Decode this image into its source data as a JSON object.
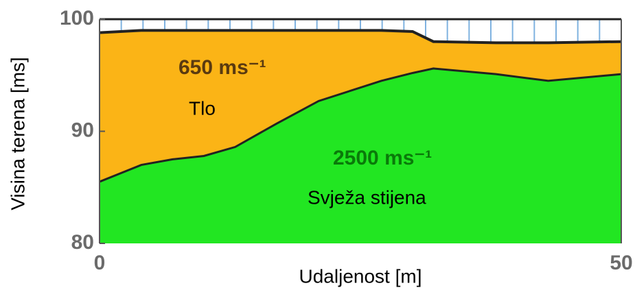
{
  "chart_data": {
    "type": "area",
    "x_label": "Udaljenost [m]",
    "y_label": "Visina terena [ms]",
    "x": [
      0,
      4,
      7,
      10,
      13,
      17,
      21,
      27,
      30,
      32,
      38,
      43,
      50
    ],
    "series": [
      {
        "color": "#fbb416",
        "values": [
          98.8,
          99,
          99,
          99,
          99,
          99,
          99,
          99,
          98.9,
          98,
          97.9,
          97.9,
          98
        ]
      },
      {
        "color": "#22e622",
        "values": [
          85.5,
          87,
          87.5,
          87.8,
          88.6,
          90.7,
          92.7,
          94.5,
          95.2,
          95.6,
          95.1,
          94.5,
          95.1
        ]
      }
    ],
    "annotations": [
      "650 ms⁻¹",
      "Tlo",
      "2500 ms⁻¹",
      "Svježa stijena"
    ],
    "xlim": [
      0,
      50
    ],
    "xticks": [
      0,
      50
    ],
    "ylim": [
      80,
      100
    ],
    "yticks": [
      80,
      90,
      100
    ]
  }
}
